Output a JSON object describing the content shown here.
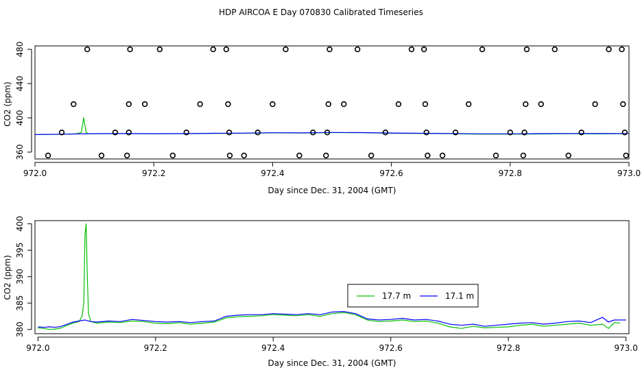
{
  "figure_title": "HDP AIRCOA E  Day 070830  Calibrated Timeseries",
  "colors": {
    "series_green": "#00c000",
    "series_blue": "#0000ff",
    "axes": "#000000",
    "markers": "#000000"
  },
  "chart_data": [
    {
      "type": "line",
      "xlabel": "Day since Dec. 31, 2004 (GMT)",
      "ylabel": "CO2 (ppm)",
      "xlim": [
        972.0,
        973.0
      ],
      "ylim": [
        352,
        484
      ],
      "xticks": [
        "972.0",
        "972.2",
        "972.4",
        "972.6",
        "972.8",
        "973.0"
      ],
      "yticks": [
        "360",
        "400",
        "440",
        "480"
      ],
      "legend": "none",
      "series": [
        {
          "color": "#00c000",
          "x": [
            972.0,
            972.05,
            972.07,
            972.078,
            972.082,
            972.086,
            972.09,
            972.15,
            972.2,
            972.25,
            972.3,
            972.35,
            972.4,
            972.45,
            972.5,
            972.55,
            972.6,
            972.65,
            972.7,
            972.75,
            972.8,
            972.85,
            972.9,
            972.95,
            972.99
          ],
          "y": [
            380.5,
            380.8,
            381.5,
            383,
            400,
            383,
            381.5,
            381.6,
            381.4,
            381.5,
            381.8,
            382,
            382.5,
            382.3,
            382.8,
            382.6,
            382,
            381.8,
            381.5,
            381,
            381,
            381.2,
            381.5,
            381.3,
            381.5
          ]
        },
        {
          "color": "#0000ff",
          "x": [
            972.0,
            972.05,
            972.1,
            972.15,
            972.2,
            972.25,
            972.3,
            972.35,
            972.4,
            972.45,
            972.5,
            972.55,
            972.6,
            972.65,
            972.7,
            972.75,
            972.8,
            972.85,
            972.9,
            972.95,
            973.0
          ],
          "y": [
            380.5,
            381,
            381.5,
            381.7,
            381.5,
            381.6,
            382,
            382.2,
            382.6,
            382.5,
            383,
            382.8,
            382.3,
            382,
            381.8,
            381.4,
            381.4,
            381.6,
            381.8,
            381.7,
            381.8
          ]
        }
      ],
      "markers": [
        {
          "x": 972.022,
          "y": 356
        },
        {
          "x": 972.045,
          "y": 383
        },
        {
          "x": 972.065,
          "y": 416
        },
        {
          "x": 972.088,
          "y": 480
        },
        {
          "x": 972.112,
          "y": 356
        },
        {
          "x": 972.135,
          "y": 383
        },
        {
          "x": 972.155,
          "y": 356
        },
        {
          "x": 972.158,
          "y": 383
        },
        {
          "x": 972.158,
          "y": 416
        },
        {
          "x": 972.16,
          "y": 480
        },
        {
          "x": 972.185,
          "y": 416
        },
        {
          "x": 972.21,
          "y": 480
        },
        {
          "x": 972.232,
          "y": 356
        },
        {
          "x": 972.255,
          "y": 383
        },
        {
          "x": 972.278,
          "y": 416
        },
        {
          "x": 972.3,
          "y": 480
        },
        {
          "x": 972.322,
          "y": 480
        },
        {
          "x": 972.325,
          "y": 416
        },
        {
          "x": 972.327,
          "y": 383
        },
        {
          "x": 972.328,
          "y": 356
        },
        {
          "x": 972.352,
          "y": 356
        },
        {
          "x": 972.375,
          "y": 383
        },
        {
          "x": 972.4,
          "y": 416
        },
        {
          "x": 972.422,
          "y": 480
        },
        {
          "x": 972.445,
          "y": 356
        },
        {
          "x": 972.468,
          "y": 383
        },
        {
          "x": 972.49,
          "y": 356
        },
        {
          "x": 972.492,
          "y": 383
        },
        {
          "x": 972.494,
          "y": 416
        },
        {
          "x": 972.496,
          "y": 480
        },
        {
          "x": 972.52,
          "y": 416
        },
        {
          "x": 972.543,
          "y": 480
        },
        {
          "x": 972.566,
          "y": 356
        },
        {
          "x": 972.59,
          "y": 383
        },
        {
          "x": 972.612,
          "y": 416
        },
        {
          "x": 972.634,
          "y": 480
        },
        {
          "x": 972.655,
          "y": 480
        },
        {
          "x": 972.657,
          "y": 416
        },
        {
          "x": 972.659,
          "y": 383
        },
        {
          "x": 972.661,
          "y": 356
        },
        {
          "x": 972.686,
          "y": 356
        },
        {
          "x": 972.708,
          "y": 383
        },
        {
          "x": 972.73,
          "y": 416
        },
        {
          "x": 972.753,
          "y": 480
        },
        {
          "x": 972.776,
          "y": 356
        },
        {
          "x": 972.8,
          "y": 383
        },
        {
          "x": 972.822,
          "y": 356
        },
        {
          "x": 972.824,
          "y": 383
        },
        {
          "x": 972.826,
          "y": 416
        },
        {
          "x": 972.828,
          "y": 480
        },
        {
          "x": 972.852,
          "y": 416
        },
        {
          "x": 972.875,
          "y": 480
        },
        {
          "x": 972.898,
          "y": 356
        },
        {
          "x": 972.92,
          "y": 383
        },
        {
          "x": 972.943,
          "y": 416
        },
        {
          "x": 972.966,
          "y": 480
        },
        {
          "x": 972.988,
          "y": 480
        },
        {
          "x": 972.99,
          "y": 416
        },
        {
          "x": 972.993,
          "y": 383
        },
        {
          "x": 972.995,
          "y": 356
        }
      ]
    },
    {
      "type": "line",
      "xlabel": "Day since Dec. 31, 2004 (GMT)",
      "ylabel": "CO2 (ppm)",
      "xlim": [
        971.995,
        973.005
      ],
      "ylim": [
        379.2,
        400.6
      ],
      "xticks": [
        "972.0",
        "972.2",
        "972.4",
        "972.6",
        "972.8",
        "973.0"
      ],
      "yticks": [
        "380",
        "385",
        "390",
        "395",
        "400"
      ],
      "legend": "center-right",
      "series": [
        {
          "name": "17.7 m",
          "color": "#00c000",
          "x": [
            972.0,
            972.01,
            972.02,
            972.03,
            972.04,
            972.05,
            972.06,
            972.07,
            972.075,
            972.078,
            972.08,
            972.082,
            972.084,
            972.086,
            972.09,
            972.1,
            972.12,
            972.14,
            972.16,
            972.18,
            972.2,
            972.22,
            972.24,
            972.26,
            972.28,
            972.3,
            972.32,
            972.34,
            972.36,
            972.38,
            972.4,
            972.42,
            972.44,
            972.46,
            972.48,
            972.5,
            972.52,
            972.54,
            972.56,
            972.58,
            972.6,
            972.62,
            972.64,
            972.66,
            972.68,
            972.7,
            972.72,
            972.74,
            972.76,
            972.78,
            972.8,
            972.82,
            972.84,
            972.86,
            972.88,
            972.9,
            972.92,
            972.94,
            972.96,
            972.97,
            972.98,
            972.99
          ],
          "y": [
            380.3,
            380.2,
            380,
            380.1,
            380.3,
            380.8,
            381.2,
            381.5,
            382.5,
            385,
            398,
            400,
            390,
            383,
            381.5,
            381.2,
            381.4,
            381.3,
            381.6,
            381.5,
            381.2,
            381.1,
            381.3,
            381,
            381.2,
            381.4,
            382.2,
            382.4,
            382.5,
            382.6,
            382.8,
            382.7,
            382.6,
            382.8,
            382.5,
            383,
            383.2,
            382.8,
            381.8,
            381.5,
            381.6,
            381.8,
            381.5,
            381.6,
            381.2,
            380.5,
            380.2,
            380.6,
            380.3,
            380.4,
            380.5,
            380.8,
            381,
            380.6,
            380.8,
            381,
            381.2,
            380.8,
            381,
            380.2,
            381.3,
            381.2
          ]
        },
        {
          "name": "17.1 m",
          "color": "#0000ff",
          "x": [
            972.0,
            972.01,
            972.02,
            972.03,
            972.04,
            972.05,
            972.06,
            972.07,
            972.08,
            972.09,
            972.1,
            972.12,
            972.14,
            972.16,
            972.18,
            972.2,
            972.22,
            972.24,
            972.26,
            972.28,
            972.3,
            972.32,
            972.34,
            972.36,
            972.38,
            972.4,
            972.42,
            972.44,
            972.46,
            972.48,
            972.5,
            972.52,
            972.54,
            972.56,
            972.58,
            972.6,
            972.62,
            972.64,
            972.66,
            972.68,
            972.7,
            972.72,
            972.74,
            972.76,
            972.78,
            972.8,
            972.82,
            972.84,
            972.86,
            972.88,
            972.9,
            972.92,
            972.94,
            972.96,
            972.97,
            972.98,
            973.0
          ],
          "y": [
            380.5,
            380.4,
            380.5,
            380.4,
            380.6,
            381,
            381.4,
            381.6,
            381.8,
            381.5,
            381.4,
            381.6,
            381.5,
            381.9,
            381.7,
            381.5,
            381.4,
            381.5,
            381.3,
            381.5,
            381.6,
            382.5,
            382.7,
            382.8,
            382.8,
            383,
            382.9,
            382.8,
            383,
            382.8,
            383.3,
            383.4,
            383,
            382,
            381.8,
            381.9,
            382.1,
            381.8,
            381.9,
            381.6,
            381,
            380.8,
            381,
            380.6,
            380.8,
            381,
            381.2,
            381.3,
            381,
            381.2,
            381.5,
            381.6,
            381.3,
            382.3,
            381.4,
            381.8,
            381.8
          ]
        }
      ]
    }
  ]
}
